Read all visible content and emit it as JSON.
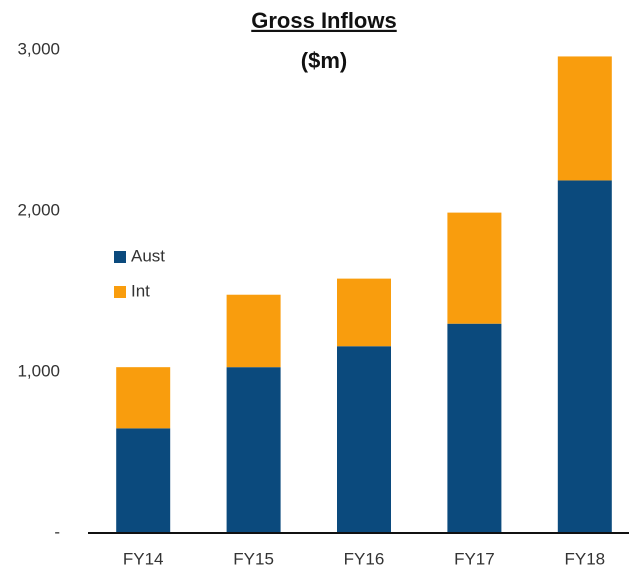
{
  "chart_data": {
    "type": "bar",
    "stacked": true,
    "title": "Gross Inflows",
    "subtitle": "($m)",
    "categories": [
      "FY14",
      "FY15",
      "FY16",
      "FY17",
      "FY18"
    ],
    "series": [
      {
        "name": "Aust",
        "color": "#0b4a7d",
        "values": [
          650,
          1030,
          1160,
          1300,
          2190
        ]
      },
      {
        "name": "Int",
        "color": "#f99d0d",
        "values": [
          380,
          450,
          420,
          690,
          770
        ]
      }
    ],
    "ylim": [
      0,
      3000
    ],
    "yticks": [
      {
        "value": 0,
        "label": "-"
      },
      {
        "value": 1000,
        "label": "1,000"
      },
      {
        "value": 2000,
        "label": "2,000"
      },
      {
        "value": 3000,
        "label": "3,000"
      }
    ],
    "grid": false,
    "legend": "left"
  }
}
